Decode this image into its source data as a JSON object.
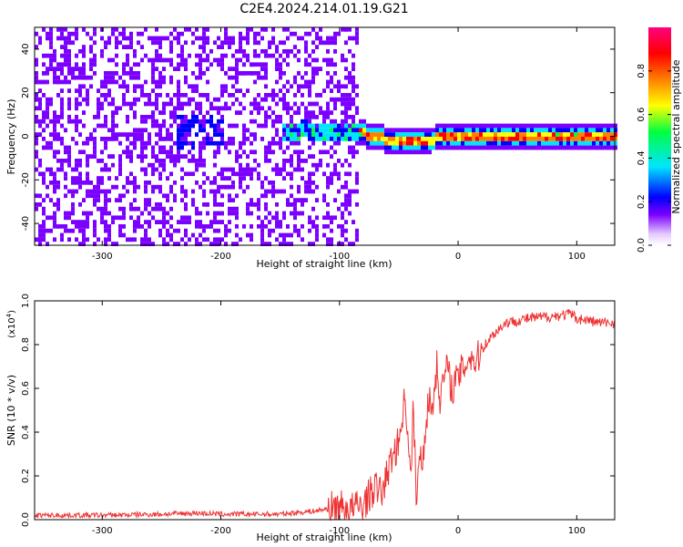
{
  "title": "C2E4.2024.214.01.19.G21",
  "chart_data": [
    {
      "type": "heatmap",
      "name": "spectrogram",
      "xlabel": "Height of straight line (km)",
      "ylabel": "Frequency (Hz)",
      "xlim": [
        -357,
        132
      ],
      "ylim": [
        -50,
        50
      ],
      "xticks": [
        -300,
        -200,
        -100,
        0,
        100
      ],
      "yticks": [
        -40,
        -20,
        0,
        20,
        40
      ],
      "colorbar": {
        "label": "Normalized spectral amplitude",
        "ticks": [
          0.0,
          0.2,
          0.4,
          0.6,
          0.8
        ],
        "range": [
          0,
          1
        ],
        "colors": [
          "#ffffff",
          "#7b00ff",
          "#0000ff",
          "#00e5ff",
          "#00ff40",
          "#ffff00",
          "#ff8000",
          "#ff0000",
          "#ff0080"
        ]
      },
      "ridge": {
        "x": [
          -150,
          -130,
          -110,
          -90,
          -80,
          -70,
          -60,
          -50,
          -40,
          -30,
          -20,
          -10,
          0,
          20,
          50,
          80,
          100,
          130
        ],
        "y": [
          3,
          4,
          2,
          3,
          2,
          1,
          -1,
          -2,
          -2,
          -1,
          0,
          1,
          0,
          0,
          0,
          0,
          0,
          0
        ]
      }
    },
    {
      "type": "line",
      "name": "snr",
      "xlabel": "Height of straight line (km)",
      "ylabel": "SNR (10 * v/v)",
      "yscale_label": "(x10",
      "yscale_exp": "4",
      "xlim": [
        -357,
        132
      ],
      "ylim": [
        0,
        1.0
      ],
      "xticks": [
        -300,
        -200,
        -100,
        0,
        100
      ],
      "yticks": [
        0.0,
        0.2,
        0.4,
        0.6,
        0.8,
        1.0
      ],
      "color": "#ee3333",
      "series": [
        {
          "x": [
            -357,
            -300,
            -250,
            -220,
            -200,
            -150,
            -120,
            -110,
            -100,
            -90,
            -80,
            -70,
            -65,
            -60,
            -55,
            -50,
            -48,
            -45,
            -42,
            -40,
            -38,
            -35,
            -32,
            -30,
            -28,
            -25,
            -22,
            -20,
            -18,
            -15,
            -12,
            -10,
            -5,
            0,
            5,
            10,
            15,
            20,
            30,
            40,
            60,
            80,
            95,
            100,
            110,
            120,
            132
          ],
          "y": [
            0.02,
            0.02,
            0.025,
            0.03,
            0.025,
            0.025,
            0.04,
            0.05,
            0.06,
            0.05,
            0.07,
            0.15,
            0.12,
            0.2,
            0.3,
            0.35,
            0.45,
            0.55,
            0.4,
            0.15,
            0.5,
            0.1,
            0.3,
            0.25,
            0.4,
            0.55,
            0.5,
            0.6,
            0.7,
            0.55,
            0.65,
            0.7,
            0.6,
            0.65,
            0.7,
            0.75,
            0.72,
            0.78,
            0.85,
            0.9,
            0.92,
            0.93,
            0.94,
            0.92,
            0.91,
            0.9,
            0.9
          ]
        }
      ]
    }
  ]
}
